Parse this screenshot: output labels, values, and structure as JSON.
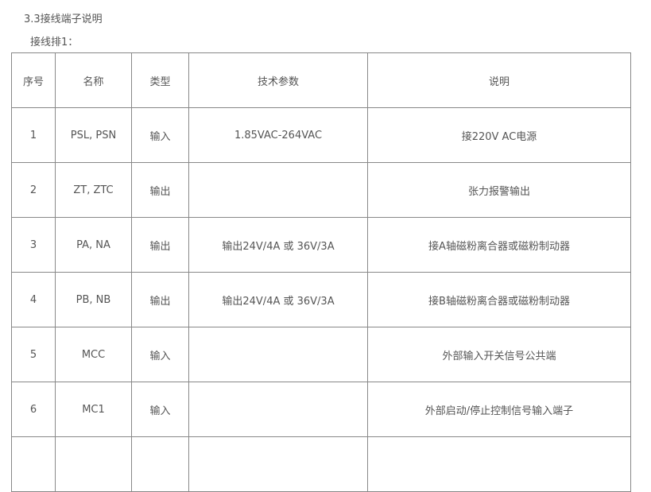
{
  "section_title": "3.3接线端子说明",
  "subtitle": "接线排1：",
  "table": {
    "headers": [
      "序号",
      "名称",
      "类型",
      "技术参数",
      "说明"
    ],
    "rows": [
      [
        "1",
        "PSL, PSN",
        "输入",
        "1.85VAC-264VAC",
        "接220V AC电源"
      ],
      [
        "2",
        "ZT, ZTC",
        "输出",
        "",
        "张力报警输出"
      ],
      [
        "3",
        "PA, NA",
        "输出",
        "输出24V/4A 或 36V/3A",
        "接A轴磁粉离合器或磁粉制动器"
      ],
      [
        "4",
        "PB, NB",
        "输出",
        "输出24V/4A 或 36V/3A",
        "接B轴磁粉离合器或磁粉制动器"
      ],
      [
        "5",
        "MCC",
        "输入",
        "",
        "外部输入开关信号公共端"
      ],
      [
        "6",
        "MC1",
        "输入",
        "",
        "外部启动/停止控制信号输入端子"
      ],
      [
        "",
        "",
        "",
        "",
        ""
      ]
    ]
  }
}
